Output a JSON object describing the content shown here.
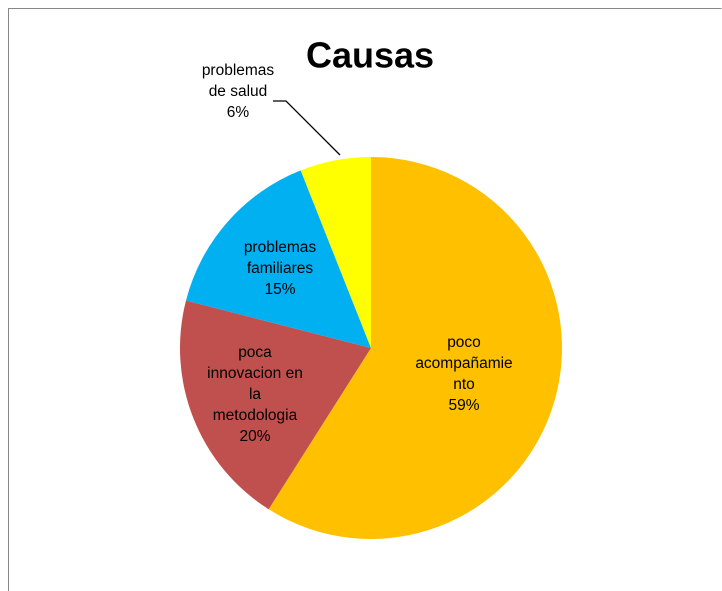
{
  "chart_data": {
    "type": "pie",
    "title": "Causas",
    "categories": [
      "poco\nacompañamie\nnto",
      "poca\ninnovacion en\nla\nmetodologia",
      "problemas\nfamiliares",
      "problemas\nde salud"
    ],
    "values": [
      59,
      20,
      15,
      6
    ],
    "value_labels": [
      "59%",
      "20%",
      "15%",
      "6%"
    ],
    "colors": [
      "#FFC000",
      "#C0504D",
      "#00B0F0",
      "#FFFF00"
    ]
  }
}
